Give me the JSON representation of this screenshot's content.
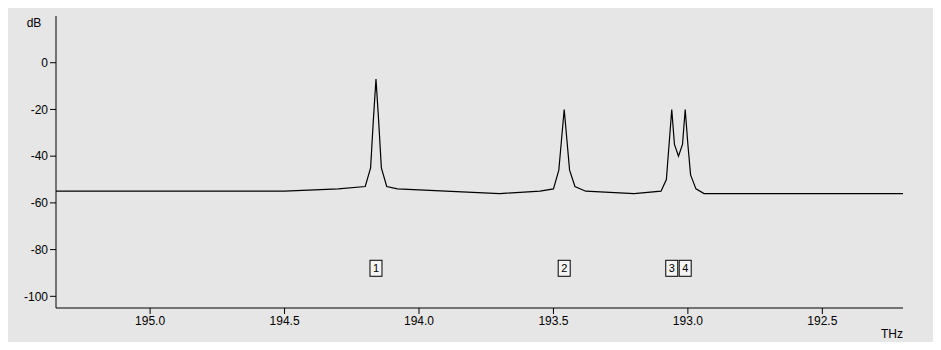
{
  "chart_data": {
    "type": "line",
    "x_label": "THz",
    "y_label": "dB",
    "xlim": [
      195.35,
      192.2
    ],
    "xticks": [
      {
        "value": 195,
        "label": "195.0"
      },
      194.5,
      {
        "value": 194,
        "label": "194.0"
      },
      193.5,
      {
        "value": 193,
        "label": "193.0"
      },
      192.5
    ],
    "ylim": [
      -105,
      20
    ],
    "yticks": [
      0,
      -20,
      -40,
      -60,
      -80,
      -100
    ],
    "grid": false,
    "color": "#000000",
    "x": [
      195.35,
      194.9,
      194.5,
      194.3,
      194.2,
      194.18,
      194.17,
      194.16,
      194.15,
      194.14,
      194.12,
      194.08,
      193.9,
      193.7,
      193.55,
      193.5,
      193.48,
      193.47,
      193.46,
      193.45,
      193.44,
      193.42,
      193.38,
      193.2,
      193.1,
      193.08,
      193.07,
      193.06,
      193.05,
      193.035,
      193.02,
      193.01,
      193.0,
      192.99,
      192.97,
      192.94,
      192.8,
      192.5,
      192.2
    ],
    "values": [
      -55,
      -55,
      -55,
      -54,
      -53,
      -45,
      -25,
      -7,
      -25,
      -45,
      -53,
      -54,
      -55,
      -56,
      -55,
      -54,
      -46,
      -33,
      -20,
      -33,
      -46,
      -53,
      -55,
      -56,
      -55,
      -50,
      -35,
      -20,
      -35,
      -40,
      -35,
      -20,
      -35,
      -48,
      -54,
      -56,
      -56,
      -56,
      -56
    ],
    "annotations": [
      {
        "text": "1",
        "x": 194.16,
        "y": -88
      },
      {
        "text": "2",
        "x": 193.46,
        "y": -88
      },
      {
        "text": "3",
        "x": 193.06,
        "y": -88
      },
      {
        "text": "4",
        "x": 193.01,
        "y": -88
      }
    ]
  }
}
